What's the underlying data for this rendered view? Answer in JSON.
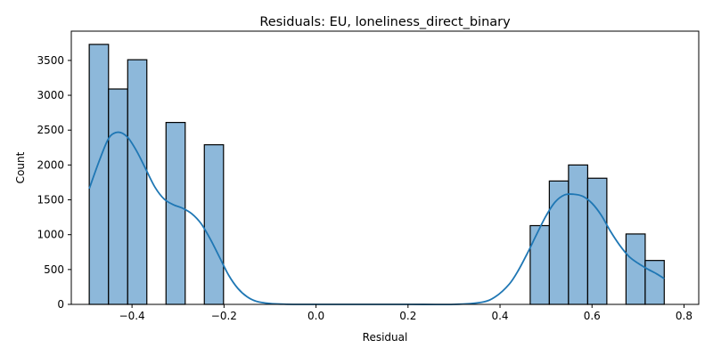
{
  "chart_data": {
    "type": "bar",
    "title": "Residuals: EU, loneliness_direct_binary",
    "xlabel": "Residual",
    "ylabel": "Count",
    "xlim": [
      -0.532,
      0.832
    ],
    "ylim": [
      0,
      3920
    ],
    "x_ticks": [
      -0.4,
      -0.2,
      0.0,
      0.2,
      0.4,
      0.6,
      0.8
    ],
    "x_tick_labels": [
      "−0.4",
      "−0.2",
      "0.0",
      "0.2",
      "0.4",
      "0.6",
      "0.8"
    ],
    "y_ticks": [
      0,
      500,
      1000,
      1500,
      2000,
      2500,
      3000,
      3500
    ],
    "y_tick_labels": [
      "0",
      "500",
      "1000",
      "1500",
      "2000",
      "2500",
      "3000",
      "3500"
    ],
    "bin_edges": [
      -0.493,
      -0.4511,
      -0.4094,
      -0.3678,
      -0.3261,
      -0.2844,
      -0.2428,
      -0.2011,
      -0.1594,
      -0.1178,
      -0.0761,
      -0.0344,
      0.0072,
      0.0489,
      0.0906,
      0.1322,
      0.1739,
      0.2156,
      0.2572,
      0.2989,
      0.3406,
      0.3822,
      0.4239,
      0.4656,
      0.5072,
      0.5489,
      0.5906,
      0.6322,
      0.6739,
      0.7156,
      0.757
    ],
    "bars": [
      {
        "x0": -0.493,
        "x1": -0.4511,
        "count": 3730
      },
      {
        "x0": -0.4511,
        "x1": -0.4094,
        "count": 3090
      },
      {
        "x0": -0.4094,
        "x1": -0.3678,
        "count": 3510
      },
      {
        "x0": -0.3261,
        "x1": -0.2844,
        "count": 2610
      },
      {
        "x0": -0.2428,
        "x1": -0.2011,
        "count": 2290
      },
      {
        "x0": 0.4656,
        "x1": 0.5072,
        "count": 1130
      },
      {
        "x0": 0.5072,
        "x1": 0.5489,
        "count": 1770
      },
      {
        "x0": 0.5489,
        "x1": 0.5906,
        "count": 2000
      },
      {
        "x0": 0.5906,
        "x1": 0.6322,
        "count": 1810
      },
      {
        "x0": 0.6739,
        "x1": 0.7156,
        "count": 1010
      },
      {
        "x0": 0.7156,
        "x1": 0.757,
        "count": 630
      }
    ],
    "kde": {
      "x": [
        -0.493,
        -0.47,
        -0.45,
        -0.43,
        -0.41,
        -0.39,
        -0.37,
        -0.35,
        -0.33,
        -0.31,
        -0.29,
        -0.27,
        -0.25,
        -0.23,
        -0.21,
        -0.19,
        -0.17,
        -0.15,
        -0.13,
        -0.1,
        -0.07,
        -0.04,
        0.0,
        0.1,
        0.2,
        0.3,
        0.36,
        0.39,
        0.42,
        0.44,
        0.46,
        0.48,
        0.5,
        0.52,
        0.54,
        0.56,
        0.58,
        0.6,
        0.62,
        0.64,
        0.66,
        0.68,
        0.7,
        0.72,
        0.74,
        0.757
      ],
      "y": [
        1660,
        2080,
        2390,
        2470,
        2400,
        2200,
        1940,
        1680,
        1510,
        1430,
        1380,
        1300,
        1160,
        940,
        680,
        420,
        230,
        110,
        45,
        12,
        3,
        0,
        0,
        0,
        0,
        0,
        30,
        110,
        290,
        490,
        740,
        1010,
        1270,
        1470,
        1570,
        1580,
        1550,
        1450,
        1280,
        1050,
        850,
        690,
        590,
        510,
        440,
        370
      ]
    },
    "bar_fill": "#8db8da",
    "bar_edge": "#000000",
    "line_color": "#1f77b4",
    "grid": false,
    "legend": "none"
  }
}
